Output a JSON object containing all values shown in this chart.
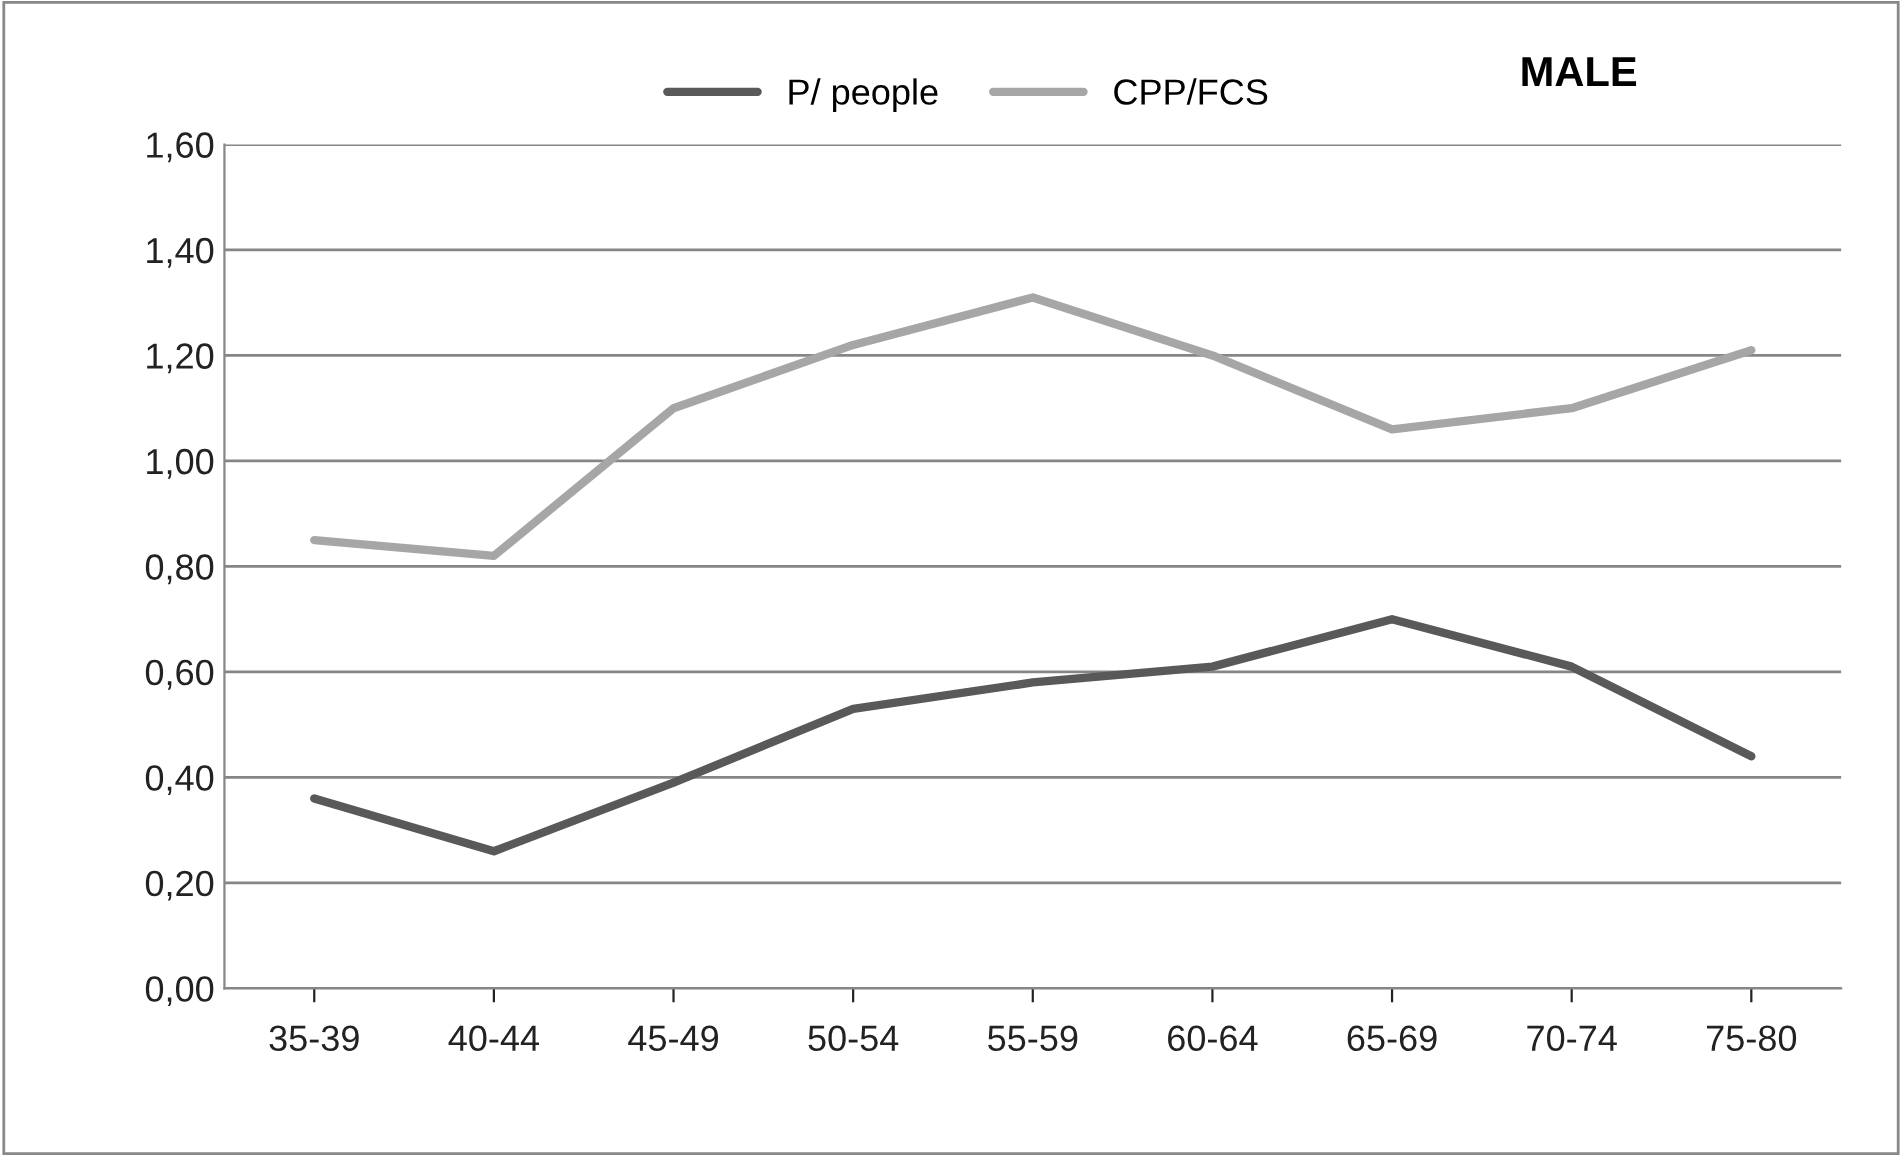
{
  "chart_data": {
    "type": "line",
    "title": "MALE",
    "categories": [
      "35-39",
      "40-44",
      "45-49",
      "50-54",
      "55-59",
      "60-64",
      "65-69",
      "70-74",
      "75-80"
    ],
    "series": [
      {
        "name": "P/ people",
        "color": "#595959",
        "values": [
          0.36,
          0.26,
          0.39,
          0.53,
          0.58,
          0.61,
          0.7,
          0.61,
          0.44
        ]
      },
      {
        "name": "CPP/FCS",
        "color": "#a6a6a6",
        "values": [
          0.85,
          0.82,
          1.1,
          1.22,
          1.31,
          1.2,
          1.06,
          1.1,
          1.21
        ]
      }
    ],
    "ylim": [
      0,
      1.6
    ],
    "yticks": [
      {
        "value": 0,
        "label": "0,00"
      },
      {
        "value": 0.2,
        "label": "0,20"
      },
      {
        "value": 0.4,
        "label": "0,40"
      },
      {
        "value": 0.6,
        "label": "0,60"
      },
      {
        "value": 0.8,
        "label": "0,80"
      },
      {
        "value": 1.0,
        "label": "1,00"
      },
      {
        "value": 1.2,
        "label": "1,20"
      },
      {
        "value": 1.4,
        "label": "1,40"
      },
      {
        "value": 1.6,
        "label": "1,60"
      }
    ],
    "grid": "y",
    "legend": "top",
    "marker": "none",
    "line_style": "solid"
  }
}
